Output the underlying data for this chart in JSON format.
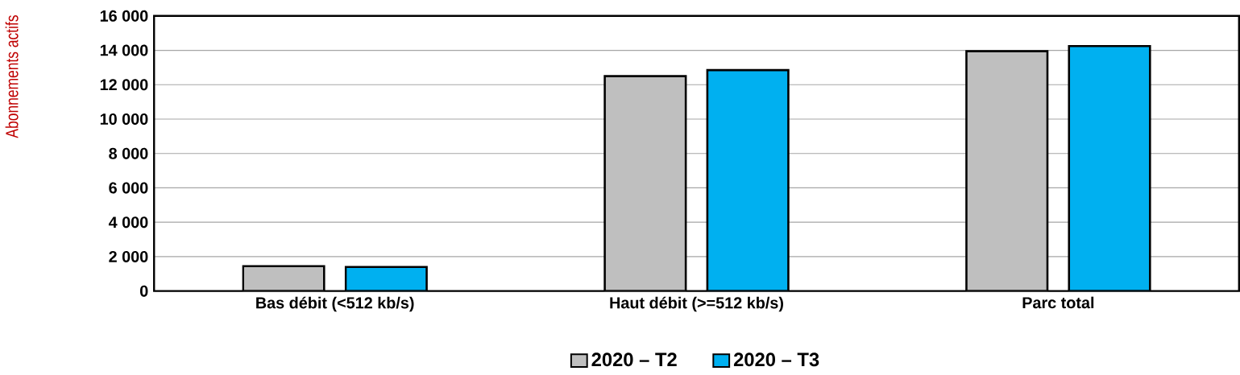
{
  "chart_data": {
    "type": "bar",
    "ylabel": "Abonnements actifs",
    "categories": [
      "Bas débit (<512 kb/s)",
      "Haut débit (>=512 kb/s)",
      "Parc total"
    ],
    "series": [
      {
        "name": "2020 – T2",
        "color": "#bfbfbf",
        "values": [
          1450,
          12500,
          13950
        ]
      },
      {
        "name": "2020 – T3",
        "color": "#00b0f0",
        "values": [
          1400,
          12850,
          14250
        ]
      }
    ],
    "ylim": [
      0,
      16000
    ],
    "yticks": [
      {
        "value": 0,
        "label": "0"
      },
      {
        "value": 2000,
        "label": "2  000"
      },
      {
        "value": 4000,
        "label": "4  000"
      },
      {
        "value": 6000,
        "label": "6  000"
      },
      {
        "value": 8000,
        "label": "8  000"
      },
      {
        "value": 10000,
        "label": "10  000"
      },
      {
        "value": 12000,
        "label": "12  000"
      },
      {
        "value": 14000,
        "label": "14  000"
      },
      {
        "value": 16000,
        "label": "16  000"
      }
    ],
    "grid": "y",
    "legend": "bottom"
  }
}
